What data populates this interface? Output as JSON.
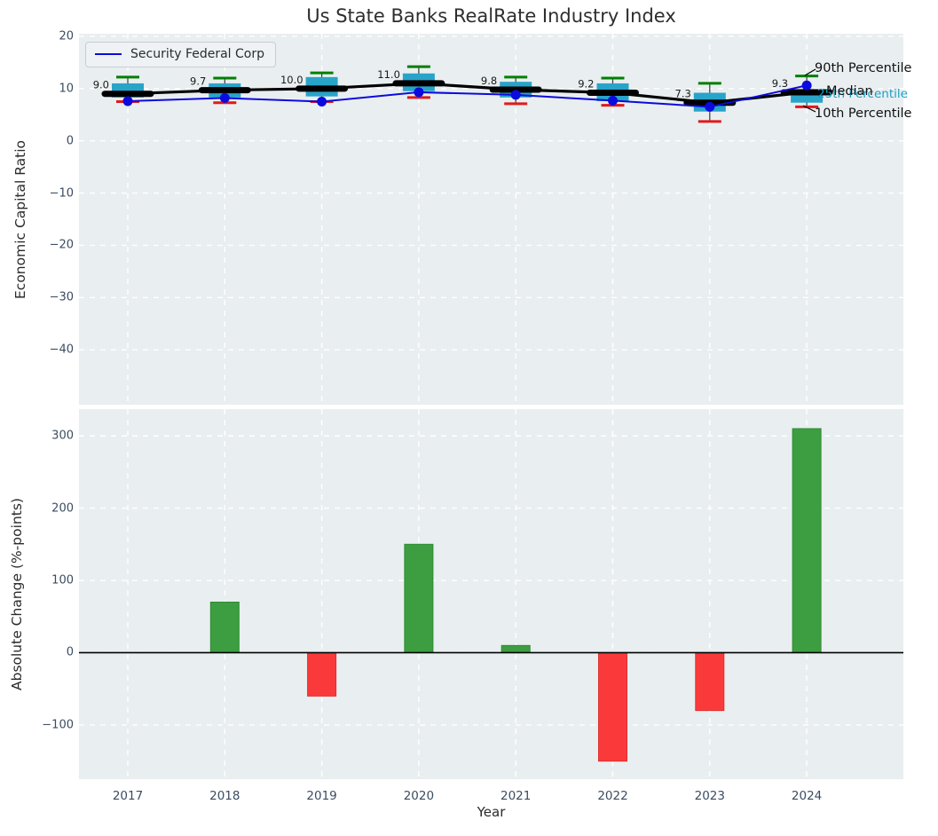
{
  "title": "Us State Banks RealRate Industry Index",
  "legend": {
    "label": "Security Federal Corp",
    "line_color": "#0b0bdd"
  },
  "annotations": {
    "p90_label": "90th Percentile",
    "median_label": "Median",
    "p25_label": "25th Percentile",
    "p10_label": "10th Percentile"
  },
  "colors": {
    "axes_bg": "#e9eef0",
    "grid": "#ffffff",
    "box_fill": "#29a4c9",
    "cap_top": "#007f00",
    "cap_bottom": "#e01a1a",
    "median_line": "#000000",
    "company_line": "#0b0bdd",
    "bar_positive": "#3c9e40",
    "bar_negative": "#fa3a3a",
    "tick_text": "#3b4c62"
  },
  "chart_data": [
    {
      "type": "boxplot+line",
      "title": "Us State Banks RealRate Industry Index",
      "ylabel": "Economic Capital Ratio",
      "ylim": [
        -50.5,
        20.5
      ],
      "yticks": [
        20,
        10,
        0,
        -10,
        -20,
        -30,
        -40
      ],
      "grid": true,
      "legend_position": "upper left",
      "categories": [
        2017,
        2018,
        2019,
        2020,
        2021,
        2022,
        2023,
        2024
      ],
      "boxes": {
        "p90": [
          12.2,
          12.0,
          13.0,
          14.2,
          12.2,
          12.0,
          11.0,
          12.4
        ],
        "q3": [
          11.0,
          11.0,
          12.2,
          12.9,
          11.3,
          11.0,
          9.2,
          9.9
        ],
        "median": [
          9.0,
          9.7,
          10.0,
          11.0,
          9.8,
          9.2,
          7.3,
          9.3
        ],
        "q1": [
          8.3,
          8.3,
          8.5,
          9.5,
          8.3,
          7.6,
          5.6,
          7.3
        ],
        "p10": [
          7.5,
          7.3,
          7.5,
          8.3,
          7.1,
          6.8,
          3.7,
          6.5
        ]
      },
      "median_labels": [
        "9.0",
        "9.7",
        "10.0",
        "11.0",
        "9.8",
        "9.2",
        "7.3",
        "9.3"
      ],
      "series": [
        {
          "name": "Security Federal Corp",
          "values": [
            7.6,
            8.2,
            7.5,
            9.3,
            8.8,
            7.7,
            6.5,
            10.6
          ]
        }
      ]
    },
    {
      "type": "bar",
      "ylabel": "Absolute Change (%-points)",
      "xlabel": "Year",
      "ylim": [
        -175,
        337
      ],
      "yticks": [
        300,
        200,
        100,
        0,
        -100
      ],
      "grid": true,
      "categories": [
        2017,
        2018,
        2019,
        2020,
        2021,
        2022,
        2023,
        2024
      ],
      "values": [
        0,
        70,
        -60,
        150,
        10,
        -150,
        -80,
        310
      ]
    }
  ]
}
